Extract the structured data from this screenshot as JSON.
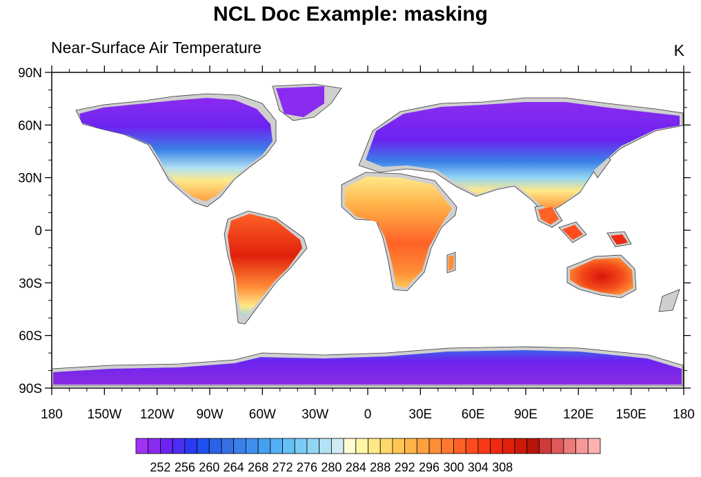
{
  "title": "NCL Doc Example:  masking",
  "subtitle": "Near-Surface Air Temperature",
  "units": "K",
  "lat_ticks": [
    "90N",
    "60N",
    "30N",
    "0",
    "30S",
    "60S",
    "90S"
  ],
  "lon_ticks": [
    "180",
    "150W",
    "120W",
    "90W",
    "60W",
    "30W",
    "0",
    "30E",
    "60E",
    "90E",
    "120E",
    "150E",
    "180"
  ],
  "colorbar": {
    "labels": [
      "252",
      "256",
      "260",
      "264",
      "268",
      "272",
      "276",
      "280",
      "284",
      "288",
      "292",
      "296",
      "300",
      "304",
      "308"
    ],
    "colors": [
      "#9f32f5",
      "#8a2bf0",
      "#6c24f0",
      "#4a2ef3",
      "#2a3af2",
      "#1f4ff0",
      "#2a62e8",
      "#356fe4",
      "#3a80e6",
      "#3f8ff0",
      "#46a0f2",
      "#54b0f4",
      "#66bff6",
      "#7acbf6",
      "#92d6f4",
      "#b2e2f4",
      "#d2ecf4",
      "#fffbd0",
      "#fff6a8",
      "#ffe889",
      "#ffd86a",
      "#ffc653",
      "#ffb44a",
      "#ffa040",
      "#ff8c36",
      "#ff782e",
      "#ff6226",
      "#ff4c1e",
      "#f83a16",
      "#ee2a10",
      "#e0200c",
      "#cc1a0a",
      "#b81408",
      "#cf3a3a",
      "#de5a5a",
      "#ec7a7a",
      "#f69898",
      "#ffb0b0"
    ]
  },
  "colors": {
    "land_background": "#cfcfcf",
    "cold": "#8a2be2",
    "hot": "#e0200c"
  }
}
